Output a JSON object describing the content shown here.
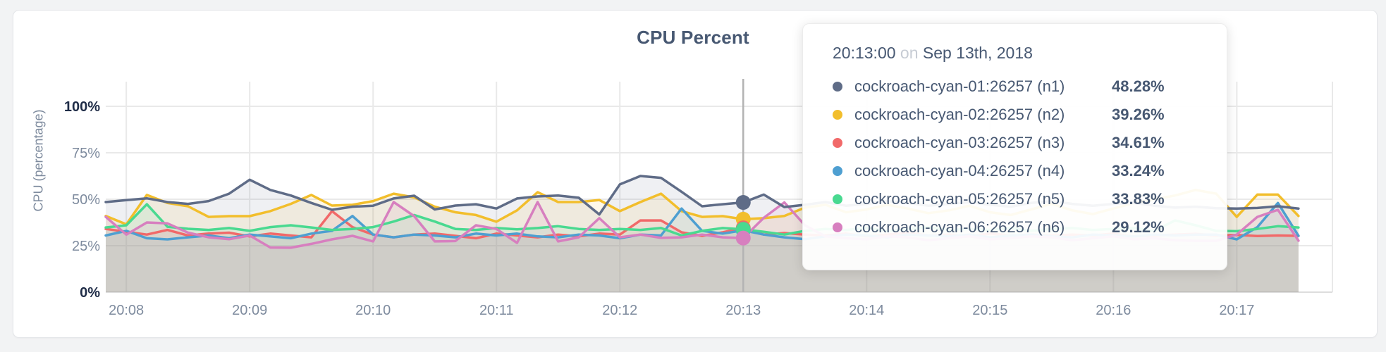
{
  "page": {
    "background": "#f2f3f4",
    "card_background": "#ffffff"
  },
  "chart": {
    "title": "CPU Percent",
    "y_axis_title": "CPU (percentage)"
  },
  "tooltip": {
    "time": "20:13:00",
    "conjunction": "on",
    "date": "Sep 13th, 2018",
    "rows": [
      {
        "label": "cockroach-cyan-01:26257 (n1)",
        "value": "48.28%",
        "color": "#5F6C87"
      },
      {
        "label": "cockroach-cyan-02:26257 (n2)",
        "value": "39.26%",
        "color": "#F2BE2C"
      },
      {
        "label": "cockroach-cyan-03:26257 (n3)",
        "value": "34.61%",
        "color": "#F16969"
      },
      {
        "label": "cockroach-cyan-04:26257 (n4)",
        "value": "33.24%",
        "color": "#4E9FD1"
      },
      {
        "label": "cockroach-cyan-05:26257 (n5)",
        "value": "33.83%",
        "color": "#49D990"
      },
      {
        "label": "cockroach-cyan-06:26257 (n6)",
        "value": "29.12%",
        "color": "#D77FBF"
      }
    ]
  },
  "chart_data": {
    "type": "line",
    "title": "CPU Percent",
    "xlabel": "",
    "ylabel": "CPU (percentage)",
    "ylim": [
      0,
      100
    ],
    "grid": true,
    "legend_position": "none",
    "area_fill_opacity": 0.1,
    "grid_color": "#e9e9e9",
    "hover_line_color": "#b3b3b3",
    "hover_time": "20:13:00",
    "hover_date": "Sep 13th, 2018",
    "start_time": "20:07:50",
    "interval_seconds": 10,
    "xticks": [
      "20:08",
      "20:09",
      "20:10",
      "20:11",
      "20:12",
      "20:13",
      "20:14",
      "20:15",
      "20:16",
      "20:17"
    ],
    "yticks": [
      {
        "label": "0%",
        "value": 0,
        "emphasis": true
      },
      {
        "label": "25%",
        "value": 25,
        "emphasis": false
      },
      {
        "label": "50%",
        "value": 50,
        "emphasis": false
      },
      {
        "label": "75%",
        "value": 75,
        "emphasis": false
      },
      {
        "label": "100%",
        "value": 100,
        "emphasis": true
      }
    ],
    "series": [
      {
        "name": "cockroach-cyan-01:26257 (n1)",
        "node": "n1",
        "color": "#5F6C87",
        "hover_value": 48.28,
        "values": [
          48.5,
          49.5,
          50.5,
          48.5,
          47.5,
          49,
          53,
          60.5,
          55,
          52,
          48,
          44.3,
          46,
          46.5,
          50.4,
          51.9,
          44.5,
          46.6,
          47.3,
          45,
          50.4,
          51.5,
          52,
          50.8,
          41.8,
          58,
          62.5,
          61.5,
          54,
          46.2,
          47.3,
          48.28,
          52.5,
          45.8,
          47,
          48.5,
          46.5,
          47.5,
          49,
          48,
          46.5,
          47.5,
          48.5,
          47,
          46,
          48,
          49,
          47.5,
          46.5,
          47.5,
          48,
          46.5,
          45.5,
          46,
          45.2,
          45,
          45.3,
          46.2,
          45
        ]
      },
      {
        "name": "cockroach-cyan-02:26257 (n2)",
        "node": "n2",
        "color": "#F2BE2C",
        "hover_value": 39.26,
        "values": [
          41,
          36.5,
          52.3,
          48,
          46.2,
          40.5,
          40.9,
          40.9,
          43.6,
          47.5,
          52.3,
          46.6,
          47,
          49,
          53,
          51,
          46,
          43,
          41.5,
          37.9,
          44,
          53.8,
          48.5,
          48.5,
          49.6,
          43.6,
          48.5,
          53,
          43.6,
          40.5,
          40.9,
          39.26,
          39.8,
          41,
          45.5,
          47,
          43,
          44.5,
          47,
          45,
          42.5,
          44,
          46.5,
          43,
          41.5,
          44.5,
          47.5,
          44,
          42,
          45,
          48,
          50,
          52,
          55,
          53,
          40.5,
          52.5,
          52.5,
          41
        ]
      },
      {
        "name": "cockroach-cyan-03:26257 (n3)",
        "node": "n3",
        "color": "#F16969",
        "hover_value": 34.61,
        "values": [
          34,
          32.5,
          31,
          33.5,
          30.5,
          31.5,
          32,
          30,
          31.5,
          30.5,
          29.5,
          43.6,
          35,
          31,
          29.5,
          31,
          31.5,
          30.3,
          29,
          31.5,
          30.5,
          29.5,
          31,
          30,
          31.5,
          31,
          38.6,
          38.6,
          32.2,
          30.3,
          32.2,
          34.61,
          31,
          31.8,
          31,
          30.5,
          31.5,
          30,
          31,
          32,
          30.5,
          31,
          30,
          31.5,
          30.5,
          31,
          30.5,
          31,
          30.5,
          31.5,
          30,
          30.5,
          31,
          31.4,
          30.5,
          30.8,
          30.2,
          30.5,
          30.3
        ]
      },
      {
        "name": "cockroach-cyan-04:26257 (n4)",
        "node": "n4",
        "color": "#4E9FD1",
        "hover_value": 33.24,
        "values": [
          30.5,
          33,
          29,
          28.4,
          29.5,
          30.5,
          29,
          31,
          30,
          29,
          31.5,
          33,
          41,
          31,
          29.5,
          31,
          30.5,
          29.5,
          31.5,
          30.5,
          31.5,
          30,
          29.5,
          31,
          30.5,
          29,
          31,
          30.5,
          45,
          33,
          31.5,
          33.24,
          31,
          29.5,
          28.5,
          30,
          31,
          30.5,
          29.5,
          31,
          30.5,
          30,
          31,
          29.5,
          30.5,
          31,
          30,
          29.5,
          31,
          30.5,
          30,
          31,
          30.5,
          31,
          31,
          28.4,
          35,
          48,
          30.3
        ]
      },
      {
        "name": "cockroach-cyan-05:26257 (n5)",
        "node": "n5",
        "color": "#49D990",
        "hover_value": 33.83,
        "values": [
          34.8,
          36,
          47.3,
          35.2,
          34.1,
          33.5,
          34.5,
          33,
          35,
          36,
          34.8,
          33.5,
          34,
          35,
          38,
          41.5,
          38,
          34,
          33.5,
          34.5,
          33.8,
          34.5,
          35.5,
          34,
          33.5,
          34,
          33.5,
          34.5,
          30.5,
          33,
          34.5,
          33.83,
          32.5,
          31,
          33,
          34,
          33.5,
          34.5,
          33,
          34,
          35,
          33.5,
          34,
          33.5,
          34.5,
          33,
          34,
          34.5,
          33.5,
          34,
          34.5,
          33,
          38.6,
          36,
          33,
          32.8,
          34,
          35.5,
          34.8
        ]
      },
      {
        "name": "cockroach-cyan-06:26257 (n6)",
        "node": "n6",
        "color": "#D77FBF",
        "hover_value": 29.12,
        "values": [
          40.5,
          31,
          37.5,
          37,
          32,
          29.5,
          28.5,
          30.5,
          24,
          23.9,
          26,
          28.4,
          30.3,
          27.3,
          48.5,
          40.9,
          27.3,
          27.5,
          36,
          34,
          26.5,
          48.5,
          27.3,
          29.5,
          39.8,
          29.5,
          31,
          29.2,
          29.5,
          31,
          29.5,
          29.12,
          40,
          48.3,
          36,
          30,
          29,
          28.5,
          30,
          29.5,
          28,
          29,
          30,
          28.5,
          29,
          30,
          29.5,
          28,
          29,
          30,
          28.5,
          29,
          28,
          27.6,
          27.6,
          31,
          40.5,
          44.3,
          27.7
        ]
      }
    ]
  }
}
